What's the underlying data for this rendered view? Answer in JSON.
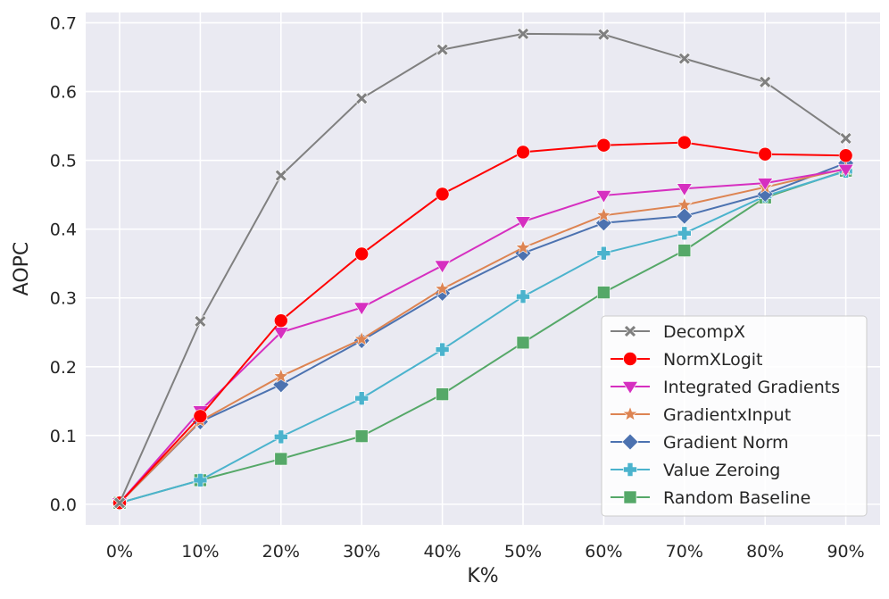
{
  "chart_data": {
    "type": "line",
    "title": "",
    "xlabel": "K%",
    "ylabel": "AOPC",
    "categories": [
      "0%",
      "10%",
      "20%",
      "30%",
      "40%",
      "50%",
      "60%",
      "70%",
      "80%",
      "90%"
    ],
    "ylim": [
      -0.03,
      0.715
    ],
    "yticks": [
      "0.0",
      "0.1",
      "0.2",
      "0.3",
      "0.4",
      "0.5",
      "0.6",
      "0.7"
    ],
    "grid": true,
    "legend_position": "lower-right",
    "series": [
      {
        "name": "DecompX",
        "color": "#808080",
        "marker": "x",
        "values": [
          0.002,
          0.266,
          0.478,
          0.59,
          0.661,
          0.684,
          0.683,
          0.648,
          0.614,
          0.532
        ]
      },
      {
        "name": "NormXLogit",
        "color": "#ff0000",
        "marker": "circle",
        "values": [
          0.002,
          0.128,
          0.267,
          0.364,
          0.451,
          0.512,
          0.522,
          0.526,
          0.509,
          0.507
        ]
      },
      {
        "name": "Integrated Gradients",
        "color": "#d62fc0",
        "marker": "triangle-down",
        "values": [
          0.002,
          0.136,
          0.25,
          0.286,
          0.347,
          0.411,
          0.449,
          0.459,
          0.467,
          0.487
        ]
      },
      {
        "name": "GradientxInput",
        "color": "#dd8452",
        "marker": "star",
        "values": [
          0.002,
          0.121,
          0.186,
          0.24,
          0.313,
          0.373,
          0.42,
          0.435,
          0.461,
          0.488
        ]
      },
      {
        "name": "Gradient Norm",
        "color": "#4c72b0",
        "marker": "diamond",
        "values": [
          0.002,
          0.12,
          0.174,
          0.238,
          0.307,
          0.365,
          0.409,
          0.419,
          0.451,
          0.496
        ]
      },
      {
        "name": "Value Zeroing",
        "color": "#4bb3cd",
        "marker": "plus",
        "values": [
          0.002,
          0.035,
          0.098,
          0.154,
          0.225,
          0.302,
          0.365,
          0.394,
          0.448,
          0.484
        ]
      },
      {
        "name": "Random Baseline",
        "color": "#55a868",
        "marker": "square",
        "values": [
          0.002,
          0.035,
          0.066,
          0.099,
          0.16,
          0.235,
          0.308,
          0.369,
          0.446,
          0.485
        ]
      }
    ]
  }
}
